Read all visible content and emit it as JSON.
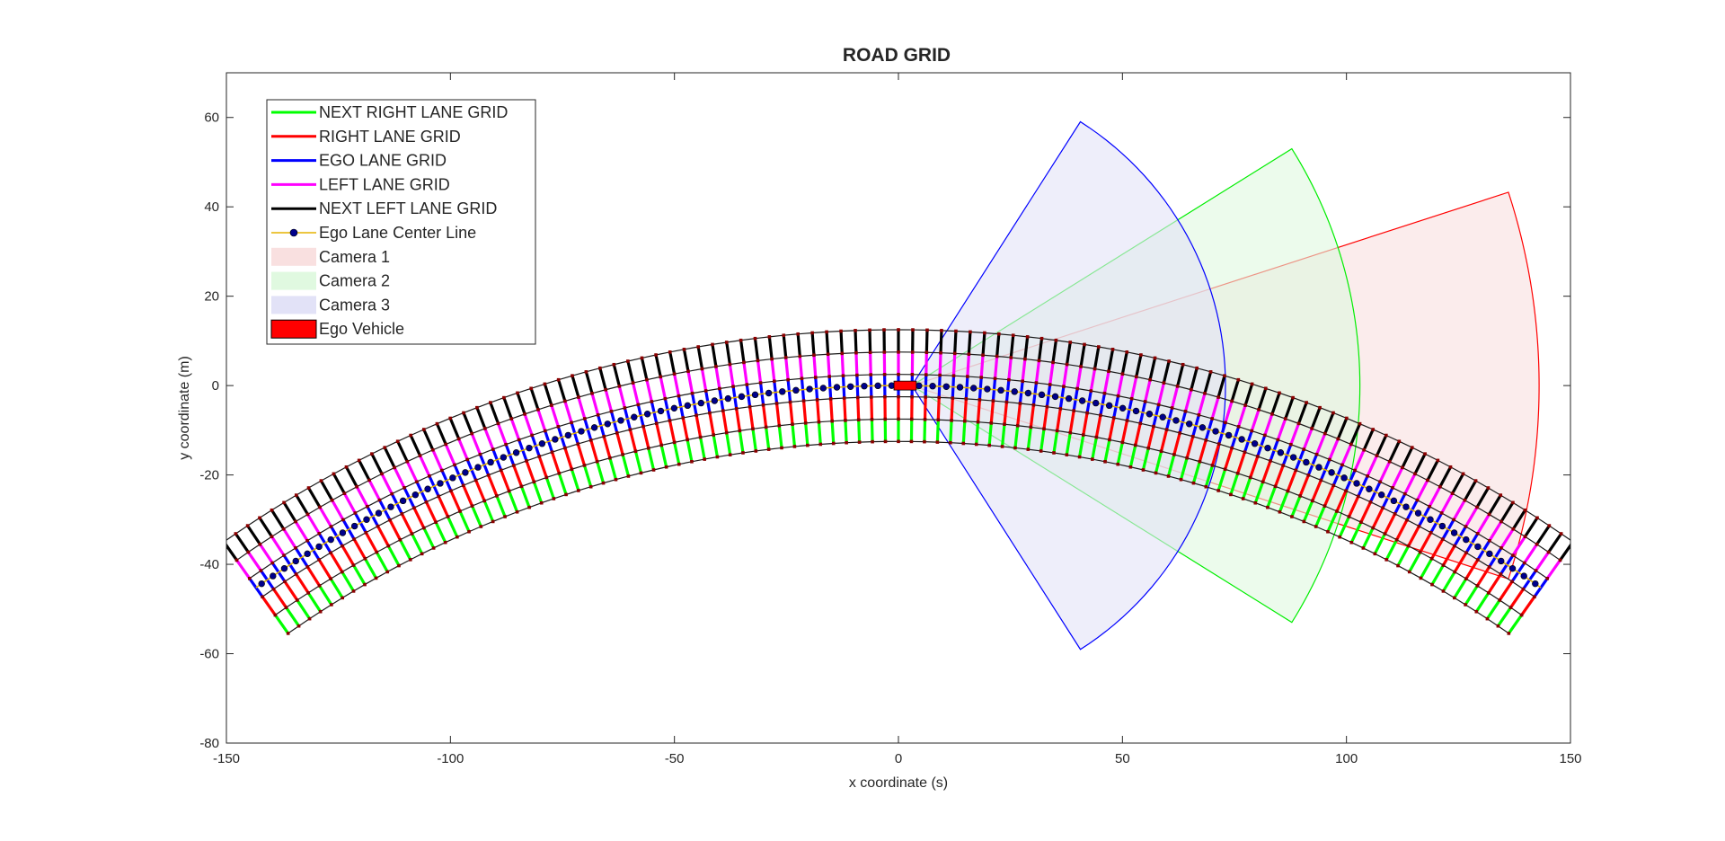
{
  "chart_data": {
    "type": "line",
    "title": "ROAD GRID",
    "xlabel": "x coordinate (s)",
    "ylabel": "y coordinate (m)",
    "xlim": [
      -150,
      150
    ],
    "ylim": [
      -80,
      70
    ],
    "xticks": [
      -150,
      -100,
      -50,
      0,
      50,
      100,
      150
    ],
    "yticks": [
      -80,
      -60,
      -40,
      -20,
      0,
      20,
      40,
      60
    ],
    "grid": false,
    "legend_position": "top-left",
    "road": {
      "curve_radius_m": 250,
      "arc_center": [
        0,
        -250
      ],
      "angle_range_deg": [
        -35,
        35
      ],
      "cell_count": 100,
      "boundary_offsets_m": [
        -12.5,
        -7.5,
        -2.5,
        2.5,
        7.5,
        12.5
      ],
      "boundary_marker_color": "#8b0000"
    },
    "series": [
      {
        "name": "NEXT RIGHT LANE GRID",
        "color": "#00ff00",
        "lane_offsets_m": [
          -12.5,
          -7.5
        ]
      },
      {
        "name": "RIGHT LANE GRID",
        "color": "#ff0000",
        "lane_offsets_m": [
          -7.5,
          -2.5
        ]
      },
      {
        "name": "EGO LANE GRID",
        "color": "#0000ff",
        "lane_offsets_m": [
          -2.5,
          2.5
        ]
      },
      {
        "name": "LEFT LANE GRID",
        "color": "#ff00ff",
        "lane_offsets_m": [
          2.5,
          7.5
        ]
      },
      {
        "name": "NEXT LEFT LANE GRID",
        "color": "#000000",
        "lane_offsets_m": [
          7.5,
          12.5
        ]
      },
      {
        "name": "Ego Lane Center Line",
        "color": "#e6b400",
        "marker_color": "#00008b",
        "marker_count": 100
      }
    ],
    "cameras": [
      {
        "name": "Camera 1",
        "origin": [
          3,
          0
        ],
        "range_m": 140,
        "fov_deg": [
          -18,
          18
        ],
        "edge_color": "#ff0000",
        "fill": "#f9e0e0",
        "fill_opacity": 0.6
      },
      {
        "name": "Camera 2",
        "origin": [
          3,
          0
        ],
        "range_m": 100,
        "fov_deg": [
          -32,
          32
        ],
        "edge_color": "#00ee00",
        "fill": "#e0f9e0",
        "fill_opacity": 0.6
      },
      {
        "name": "Camera 3",
        "origin": [
          3,
          0
        ],
        "range_m": 70,
        "fov_deg": [
          -57.5,
          57.5
        ],
        "edge_color": "#0000ff",
        "fill": "#e2e2f7",
        "fill_opacity": 0.6
      }
    ],
    "ego_vehicle": {
      "name": "Ego Vehicle",
      "x_range": [
        -1,
        4
      ],
      "y_range": [
        -1,
        1
      ],
      "color": "#ff0000"
    }
  }
}
